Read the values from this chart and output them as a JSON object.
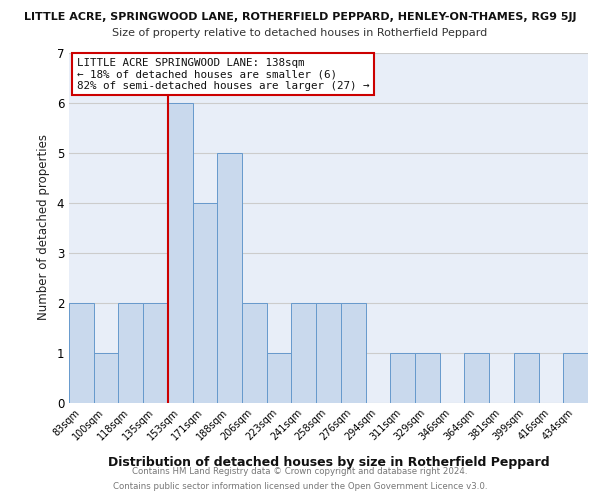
{
  "title_main": "LITTLE ACRE, SPRINGWOOD LANE, ROTHERFIELD PEPPARD, HENLEY-ON-THAMES, RG9 5JJ",
  "title_sub": "Size of property relative to detached houses in Rotherfield Peppard",
  "xlabel": "Distribution of detached houses by size in Rotherfield Peppard",
  "ylabel": "Number of detached properties",
  "bin_labels": [
    "83sqm",
    "100sqm",
    "118sqm",
    "135sqm",
    "153sqm",
    "171sqm",
    "188sqm",
    "206sqm",
    "223sqm",
    "241sqm",
    "258sqm",
    "276sqm",
    "294sqm",
    "311sqm",
    "329sqm",
    "346sqm",
    "364sqm",
    "381sqm",
    "399sqm",
    "416sqm",
    "434sqm"
  ],
  "bar_heights": [
    2,
    1,
    2,
    2,
    6,
    4,
    5,
    2,
    1,
    2,
    2,
    2,
    0,
    1,
    1,
    0,
    1,
    0,
    1,
    0,
    1
  ],
  "bar_color": "#c9d9ed",
  "bar_edge_color": "#6699cc",
  "reference_line_color": "#cc0000",
  "annotation_title": "LITTLE ACRE SPRINGWOOD LANE: 138sqm",
  "annotation_line2": "← 18% of detached houses are smaller (6)",
  "annotation_line3": "82% of semi-detached houses are larger (27) →",
  "annotation_box_color": "#ffffff",
  "annotation_box_edge": "#cc0000",
  "ylim": [
    0,
    7
  ],
  "yticks": [
    0,
    1,
    2,
    3,
    4,
    5,
    6,
    7
  ],
  "grid_color": "#cccccc",
  "bg_color": "#e8eef8",
  "footer1": "Contains HM Land Registry data © Crown copyright and database right 2024.",
  "footer2": "Contains public sector information licensed under the Open Government Licence v3.0."
}
